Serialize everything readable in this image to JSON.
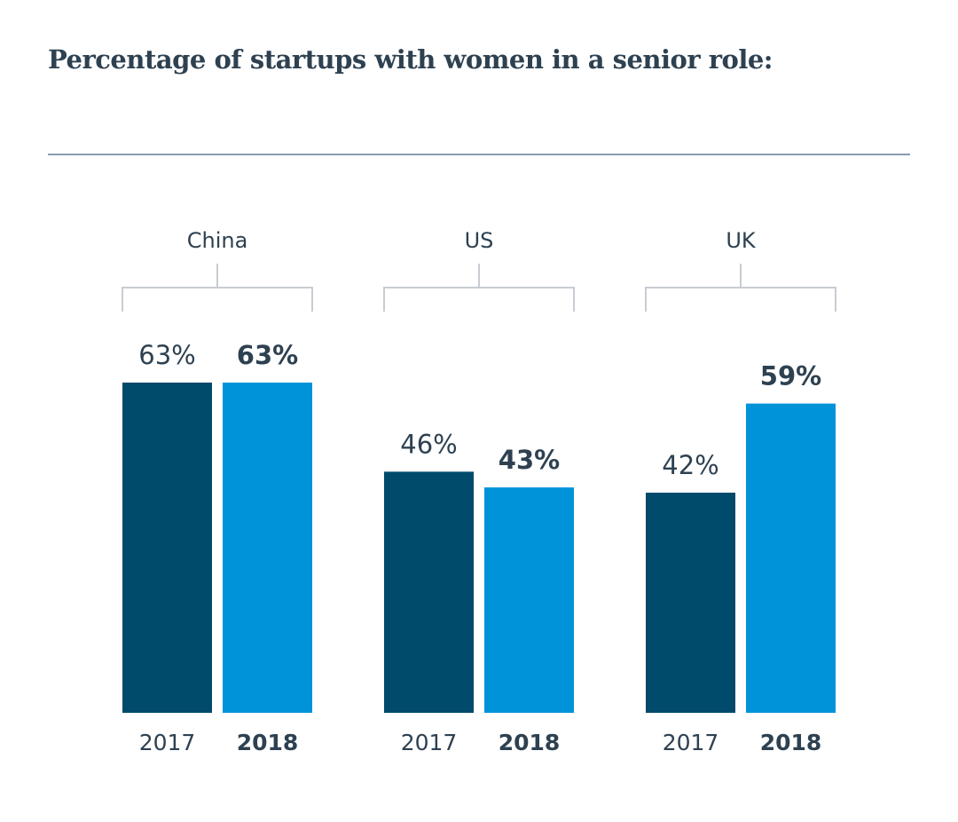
{
  "chart_data": {
    "type": "bar",
    "title": "Percentage of startups with women in a senior role:",
    "categories": [
      "China",
      "US",
      "UK"
    ],
    "series": [
      {
        "name": "2017",
        "values": [
          63,
          46,
          42
        ],
        "color": "#004a6b"
      },
      {
        "name": "2018",
        "values": [
          63,
          43,
          59
        ],
        "color": "#0093d9"
      }
    ],
    "value_suffix": "%",
    "xlabel": "",
    "ylabel": "",
    "ylim": [
      0,
      63
    ],
    "grid": false
  }
}
